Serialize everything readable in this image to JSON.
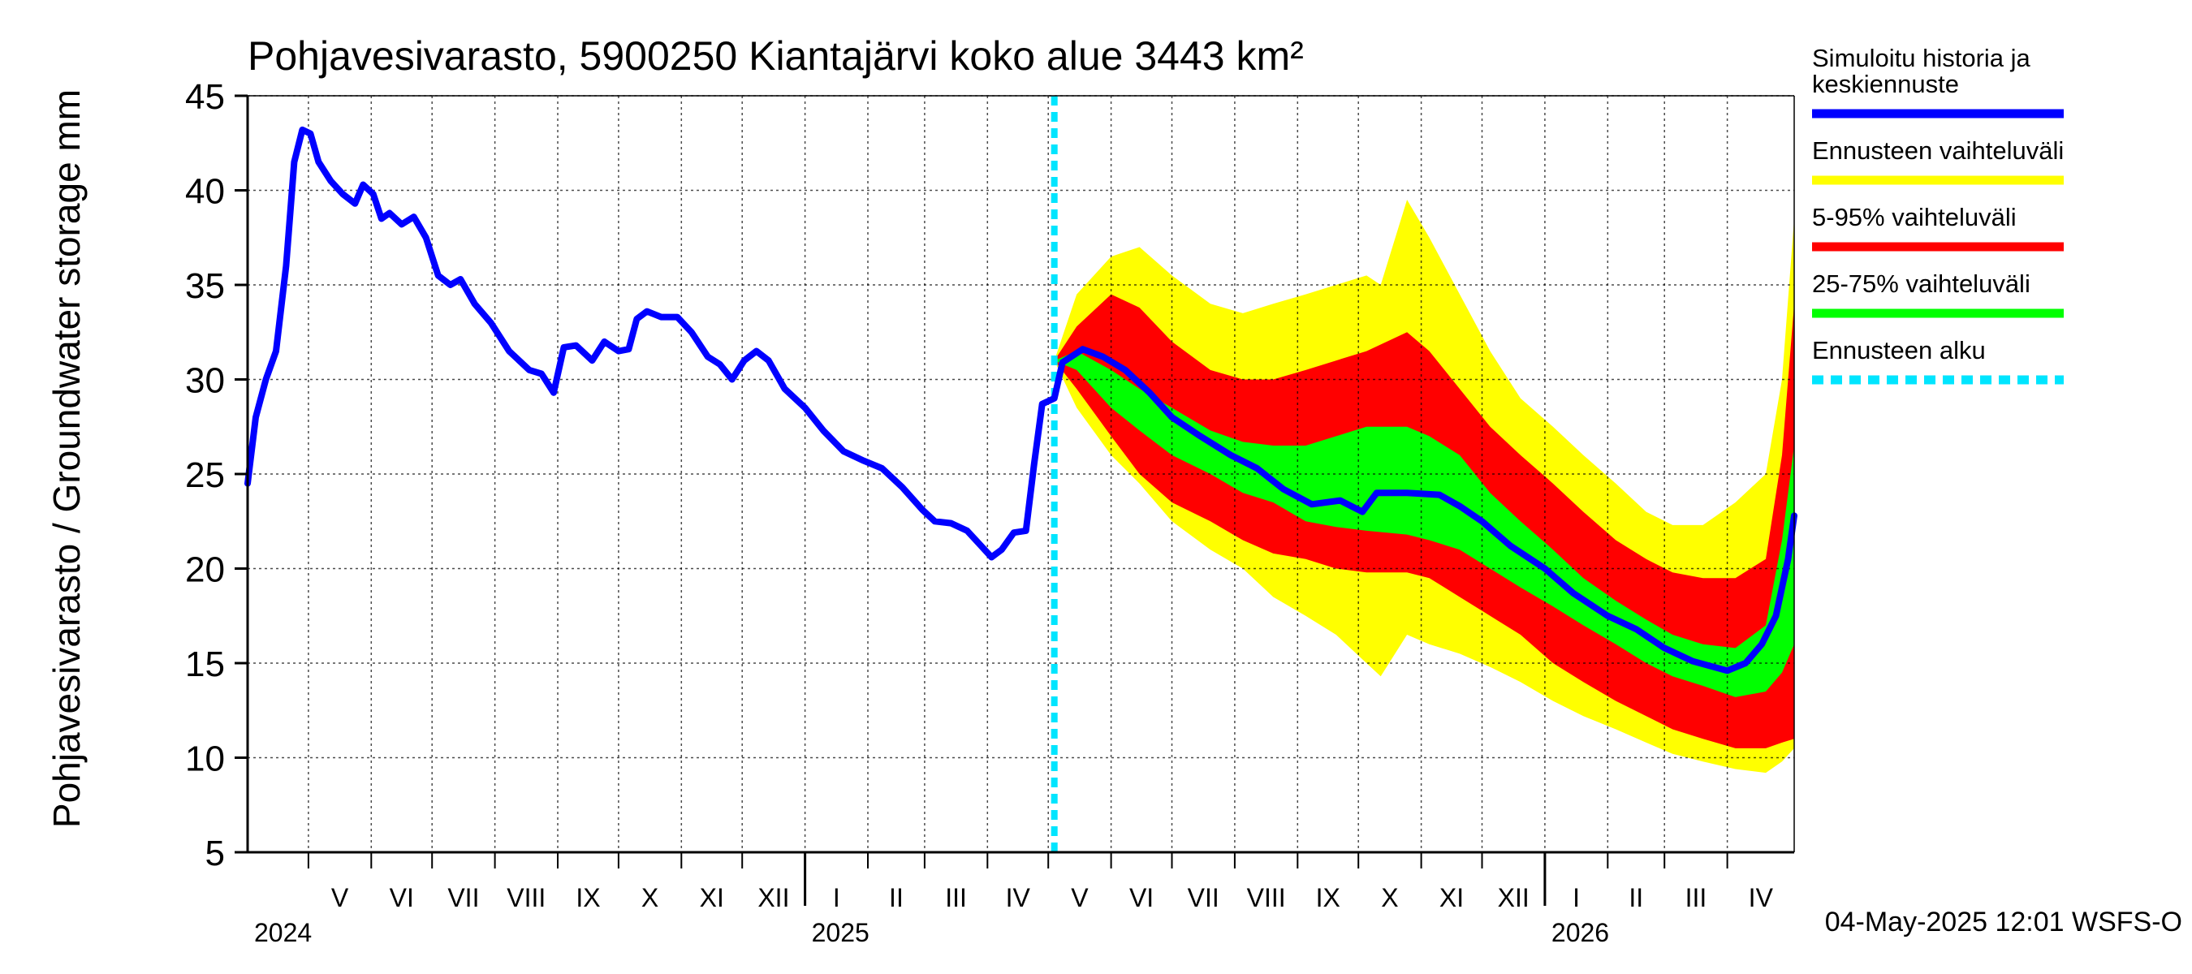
{
  "chart_data": {
    "type": "area",
    "title": "Pohjavesivarasto, 5900250 Kiantajärvi koko alue 3443 km²",
    "ylabel": "Pohjavesivarasto / Groundwater storage   mm",
    "ylim": [
      5,
      45
    ],
    "yticks": [
      5,
      10,
      15,
      20,
      25,
      30,
      35,
      40,
      45
    ],
    "xlim": [
      "2024-04-01",
      "2026-05-04"
    ],
    "grid": true,
    "legend_position": "right",
    "months": [
      {
        "label": "V",
        "start": "2024-05-01"
      },
      {
        "label": "VI",
        "start": "2024-06-01"
      },
      {
        "label": "VII",
        "start": "2024-07-01"
      },
      {
        "label": "VIII",
        "start": "2024-08-01"
      },
      {
        "label": "IX",
        "start": "2024-09-01"
      },
      {
        "label": "X",
        "start": "2024-10-01"
      },
      {
        "label": "XI",
        "start": "2024-11-01"
      },
      {
        "label": "XII",
        "start": "2024-12-01"
      },
      {
        "label": "I",
        "start": "2025-01-01"
      },
      {
        "label": "II",
        "start": "2025-02-01"
      },
      {
        "label": "III",
        "start": "2025-03-01"
      },
      {
        "label": "IV",
        "start": "2025-04-01"
      },
      {
        "label": "V",
        "start": "2025-05-01"
      },
      {
        "label": "VI",
        "start": "2025-06-01"
      },
      {
        "label": "VII",
        "start": "2025-07-01"
      },
      {
        "label": "VIII",
        "start": "2025-08-01"
      },
      {
        "label": "IX",
        "start": "2025-09-01"
      },
      {
        "label": "X",
        "start": "2025-10-01"
      },
      {
        "label": "XI",
        "start": "2025-11-01"
      },
      {
        "label": "XII",
        "start": "2025-12-01"
      },
      {
        "label": "I",
        "start": "2026-01-01"
      },
      {
        "label": "II",
        "start": "2026-02-01"
      },
      {
        "label": "III",
        "start": "2026-03-01"
      },
      {
        "label": "IV",
        "start": "2026-04-01"
      }
    ],
    "years": [
      {
        "label": "2024",
        "start": "2024-04-01"
      },
      {
        "label": "2025",
        "start": "2025-01-01"
      },
      {
        "label": "2026",
        "start": "2026-01-01"
      }
    ],
    "forecast_start": "2025-05-04",
    "series": [
      {
        "name": "Simuloitu historia ja keskiennuste",
        "kind": "line",
        "color": "#0000ff",
        "points": [
          [
            "2024-04-01",
            24.5
          ],
          [
            "2024-04-05",
            28.0
          ],
          [
            "2024-04-10",
            30.0
          ],
          [
            "2024-04-15",
            31.5
          ],
          [
            "2024-04-20",
            36.0
          ],
          [
            "2024-04-24",
            41.5
          ],
          [
            "2024-04-28",
            43.2
          ],
          [
            "2024-05-02",
            43.0
          ],
          [
            "2024-05-06",
            41.5
          ],
          [
            "2024-05-12",
            40.5
          ],
          [
            "2024-05-18",
            39.8
          ],
          [
            "2024-05-24",
            39.3
          ],
          [
            "2024-05-28",
            40.3
          ],
          [
            "2024-06-02",
            39.8
          ],
          [
            "2024-06-06",
            38.5
          ],
          [
            "2024-06-10",
            38.8
          ],
          [
            "2024-06-16",
            38.2
          ],
          [
            "2024-06-22",
            38.6
          ],
          [
            "2024-06-28",
            37.5
          ],
          [
            "2024-07-04",
            35.5
          ],
          [
            "2024-07-10",
            35.0
          ],
          [
            "2024-07-15",
            35.3
          ],
          [
            "2024-07-22",
            34.0
          ],
          [
            "2024-07-30",
            33.0
          ],
          [
            "2024-08-08",
            31.5
          ],
          [
            "2024-08-18",
            30.5
          ],
          [
            "2024-08-24",
            30.3
          ],
          [
            "2024-08-30",
            29.3
          ],
          [
            "2024-09-04",
            31.7
          ],
          [
            "2024-09-10",
            31.8
          ],
          [
            "2024-09-18",
            31.0
          ],
          [
            "2024-09-24",
            32.0
          ],
          [
            "2024-10-01",
            31.5
          ],
          [
            "2024-10-06",
            31.6
          ],
          [
            "2024-10-10",
            33.2
          ],
          [
            "2024-10-15",
            33.6
          ],
          [
            "2024-10-22",
            33.3
          ],
          [
            "2024-10-30",
            33.3
          ],
          [
            "2024-11-06",
            32.5
          ],
          [
            "2024-11-14",
            31.2
          ],
          [
            "2024-11-20",
            30.8
          ],
          [
            "2024-11-26",
            30.0
          ],
          [
            "2024-12-02",
            31.0
          ],
          [
            "2024-12-08",
            31.5
          ],
          [
            "2024-12-14",
            31.0
          ],
          [
            "2024-12-22",
            29.5
          ],
          [
            "2025-01-01",
            28.5
          ],
          [
            "2025-01-10",
            27.3
          ],
          [
            "2025-01-20",
            26.2
          ],
          [
            "2025-01-30",
            25.7
          ],
          [
            "2025-02-08",
            25.3
          ],
          [
            "2025-02-18",
            24.3
          ],
          [
            "2025-02-28",
            23.1
          ],
          [
            "2025-03-06",
            22.5
          ],
          [
            "2025-03-14",
            22.4
          ],
          [
            "2025-03-22",
            22.0
          ],
          [
            "2025-03-28",
            21.3
          ],
          [
            "2025-04-03",
            20.6
          ],
          [
            "2025-04-08",
            21.0
          ],
          [
            "2025-04-14",
            21.9
          ],
          [
            "2025-04-20",
            22.0
          ],
          [
            "2025-04-24",
            25.5
          ],
          [
            "2025-04-28",
            28.7
          ],
          [
            "2025-05-04",
            29.0
          ],
          [
            "2025-05-08",
            30.9
          ],
          [
            "2025-05-18",
            31.6
          ],
          [
            "2025-05-28",
            31.2
          ],
          [
            "2025-06-08",
            30.5
          ],
          [
            "2025-06-20",
            29.3
          ],
          [
            "2025-07-01",
            28.0
          ],
          [
            "2025-07-15",
            27.0
          ],
          [
            "2025-07-30",
            26.0
          ],
          [
            "2025-08-12",
            25.3
          ],
          [
            "2025-08-25",
            24.2
          ],
          [
            "2025-09-08",
            23.4
          ],
          [
            "2025-09-22",
            23.6
          ],
          [
            "2025-10-03",
            23.0
          ],
          [
            "2025-10-10",
            24.0
          ],
          [
            "2025-10-25",
            24.0
          ],
          [
            "2025-11-10",
            23.9
          ],
          [
            "2025-11-20",
            23.3
          ],
          [
            "2025-12-01",
            22.5
          ],
          [
            "2025-12-15",
            21.2
          ],
          [
            "2026-01-01",
            20.0
          ],
          [
            "2026-01-15",
            18.7
          ],
          [
            "2026-02-01",
            17.5
          ],
          [
            "2026-02-15",
            16.8
          ],
          [
            "2026-03-01",
            15.8
          ],
          [
            "2026-03-15",
            15.1
          ],
          [
            "2026-04-01",
            14.6
          ],
          [
            "2026-04-10",
            15.0
          ],
          [
            "2026-04-18",
            16.0
          ],
          [
            "2026-04-25",
            17.5
          ],
          [
            "2026-05-01",
            20.5
          ],
          [
            "2026-05-04",
            22.8
          ]
        ]
      },
      {
        "name": "Ennusteen vaihteluväli",
        "kind": "band",
        "color": "#ffff00",
        "band": [
          [
            "2025-05-04",
            31.0,
            31.0
          ],
          [
            "2025-05-15",
            34.5,
            28.5
          ],
          [
            "2025-06-01",
            36.5,
            26.0
          ],
          [
            "2025-06-15",
            37.0,
            24.5
          ],
          [
            "2025-07-01",
            35.5,
            22.5
          ],
          [
            "2025-07-20",
            34.0,
            21.0
          ],
          [
            "2025-08-05",
            33.5,
            20.0
          ],
          [
            "2025-08-20",
            34.0,
            18.5
          ],
          [
            "2025-09-05",
            34.5,
            17.5
          ],
          [
            "2025-09-20",
            35.0,
            16.5
          ],
          [
            "2025-10-05",
            35.5,
            15.0
          ],
          [
            "2025-10-12",
            35.0,
            14.3
          ],
          [
            "2025-10-25",
            39.5,
            16.5
          ],
          [
            "2025-11-05",
            37.5,
            16.0
          ],
          [
            "2025-11-20",
            34.5,
            15.5
          ],
          [
            "2025-12-05",
            31.5,
            14.8
          ],
          [
            "2025-12-20",
            29.0,
            14.0
          ],
          [
            "2026-01-05",
            27.5,
            13.0
          ],
          [
            "2026-01-20",
            26.0,
            12.2
          ],
          [
            "2026-02-05",
            24.5,
            11.5
          ],
          [
            "2026-02-20",
            23.0,
            10.8
          ],
          [
            "2026-03-05",
            22.3,
            10.2
          ],
          [
            "2026-03-20",
            22.3,
            9.8
          ],
          [
            "2026-04-05",
            23.5,
            9.4
          ],
          [
            "2026-04-20",
            25.0,
            9.2
          ],
          [
            "2026-04-28",
            30.0,
            9.8
          ],
          [
            "2026-05-04",
            38.5,
            10.5
          ]
        ]
      },
      {
        "name": "5-95% vaihteluväli",
        "kind": "band",
        "color": "#ff0000",
        "band": [
          [
            "2025-05-04",
            31.0,
            31.0
          ],
          [
            "2025-05-15",
            32.8,
            29.5
          ],
          [
            "2025-06-01",
            34.5,
            27.0
          ],
          [
            "2025-06-15",
            33.8,
            25.0
          ],
          [
            "2025-07-01",
            32.0,
            23.5
          ],
          [
            "2025-07-20",
            30.5,
            22.5
          ],
          [
            "2025-08-05",
            30.0,
            21.5
          ],
          [
            "2025-08-20",
            30.0,
            20.8
          ],
          [
            "2025-09-05",
            30.5,
            20.5
          ],
          [
            "2025-09-20",
            31.0,
            20.0
          ],
          [
            "2025-10-05",
            31.5,
            19.8
          ],
          [
            "2025-10-25",
            32.5,
            19.8
          ],
          [
            "2025-11-05",
            31.5,
            19.5
          ],
          [
            "2025-11-20",
            29.5,
            18.5
          ],
          [
            "2025-12-05",
            27.5,
            17.5
          ],
          [
            "2025-12-20",
            26.0,
            16.5
          ],
          [
            "2026-01-05",
            24.5,
            15.0
          ],
          [
            "2026-01-20",
            23.0,
            14.0
          ],
          [
            "2026-02-05",
            21.5,
            13.0
          ],
          [
            "2026-02-20",
            20.5,
            12.2
          ],
          [
            "2026-03-05",
            19.8,
            11.5
          ],
          [
            "2026-03-20",
            19.5,
            11.0
          ],
          [
            "2026-04-05",
            19.5,
            10.5
          ],
          [
            "2026-04-20",
            20.5,
            10.5
          ],
          [
            "2026-04-28",
            26.0,
            10.8
          ],
          [
            "2026-05-04",
            34.0,
            11.0
          ]
        ]
      },
      {
        "name": "25-75% vaihteluväli",
        "kind": "band",
        "color": "#00ff00",
        "band": [
          [
            "2025-05-04",
            31.0,
            31.0
          ],
          [
            "2025-05-15",
            31.5,
            30.5
          ],
          [
            "2025-06-01",
            30.5,
            28.5
          ],
          [
            "2025-06-15",
            29.5,
            27.3
          ],
          [
            "2025-07-01",
            28.5,
            26.0
          ],
          [
            "2025-07-20",
            27.3,
            25.0
          ],
          [
            "2025-08-05",
            26.7,
            24.0
          ],
          [
            "2025-08-20",
            26.5,
            23.5
          ],
          [
            "2025-09-05",
            26.5,
            22.5
          ],
          [
            "2025-09-20",
            27.0,
            22.2
          ],
          [
            "2025-10-05",
            27.5,
            22.0
          ],
          [
            "2025-10-25",
            27.5,
            21.8
          ],
          [
            "2025-11-05",
            27.0,
            21.5
          ],
          [
            "2025-11-20",
            26.0,
            21.0
          ],
          [
            "2025-12-05",
            24.0,
            20.0
          ],
          [
            "2025-12-20",
            22.5,
            19.0
          ],
          [
            "2026-01-05",
            21.0,
            18.0
          ],
          [
            "2026-01-20",
            19.5,
            17.0
          ],
          [
            "2026-02-05",
            18.3,
            16.0
          ],
          [
            "2026-02-20",
            17.3,
            15.0
          ],
          [
            "2026-03-05",
            16.5,
            14.3
          ],
          [
            "2026-03-20",
            16.0,
            13.8
          ],
          [
            "2026-04-05",
            15.8,
            13.2
          ],
          [
            "2026-04-20",
            17.0,
            13.5
          ],
          [
            "2026-04-28",
            21.5,
            14.5
          ],
          [
            "2026-05-04",
            26.5,
            16.0
          ]
        ]
      },
      {
        "name": "Ennusteen alku",
        "kind": "vline",
        "color": "#00e5ff"
      }
    ]
  },
  "legend": [
    {
      "label": "Simuloitu historia ja",
      "label2": "keskiennuste",
      "color": "#0000ff",
      "style": "solid"
    },
    {
      "label": "Ennusteen vaihteluväli",
      "color": "#ffff00",
      "style": "solid"
    },
    {
      "label": "5-95% vaihteluväli",
      "color": "#ff0000",
      "style": "solid"
    },
    {
      "label": "25-75% vaihteluväli",
      "color": "#00ff00",
      "style": "solid"
    },
    {
      "label": "Ennusteen alku",
      "color": "#00e5ff",
      "style": "dashed"
    }
  ],
  "footer": "04-May-2025 12:01 WSFS-O"
}
